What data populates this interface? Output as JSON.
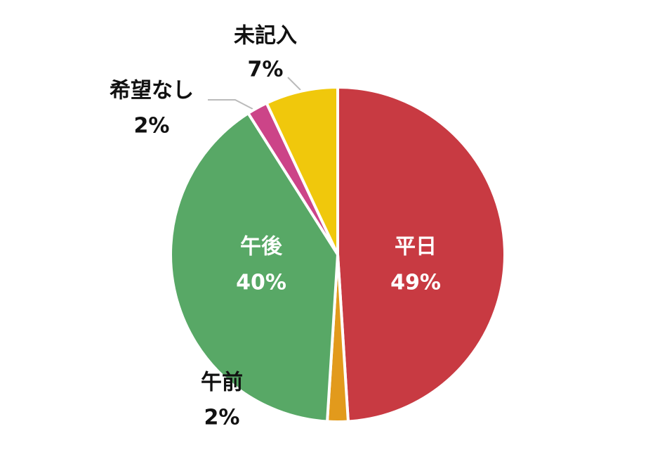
{
  "chart_data": {
    "type": "pie",
    "categories": [
      "平日",
      "午前",
      "午後",
      "希望なし",
      "未記入"
    ],
    "values": [
      49,
      2,
      40,
      2,
      7
    ],
    "value_labels": [
      "49%",
      "2%",
      "40%",
      "2%",
      "7%"
    ],
    "colors": [
      "#c83a42",
      "#e29a1c",
      "#58a866",
      "#cc4488",
      "#f0c80c"
    ]
  }
}
